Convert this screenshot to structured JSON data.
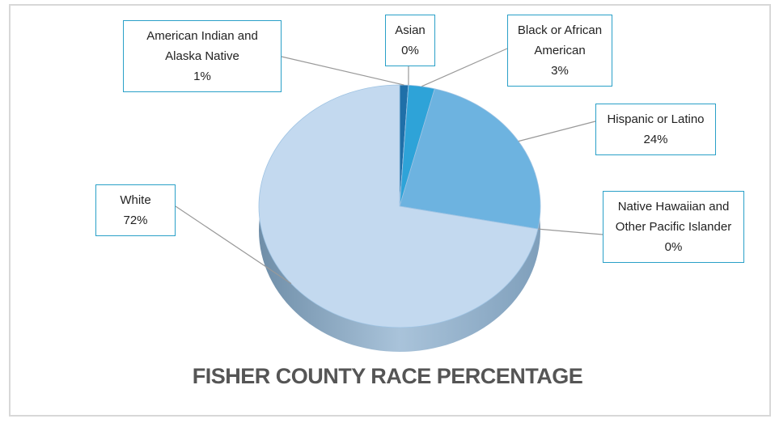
{
  "chart_data": {
    "type": "pie",
    "title": "FISHER COUNTY RACE PERCENTAGE",
    "categories": [
      "American Indian and Alaska Native",
      "Asian",
      "Black or African American",
      "Hispanic or Latino",
      "Native Hawaiian and Other Pacific Islander",
      "White"
    ],
    "values": [
      1,
      0,
      3,
      24,
      0,
      72
    ],
    "value_labels": [
      "1%",
      "0%",
      "3%",
      "24%",
      "0%",
      "72%"
    ],
    "colors": [
      "#1f6fa8",
      "#2a86c0",
      "#2ea3d8",
      "#6db3e0",
      "#8fc0e6",
      "#c3d9ef"
    ]
  }
}
